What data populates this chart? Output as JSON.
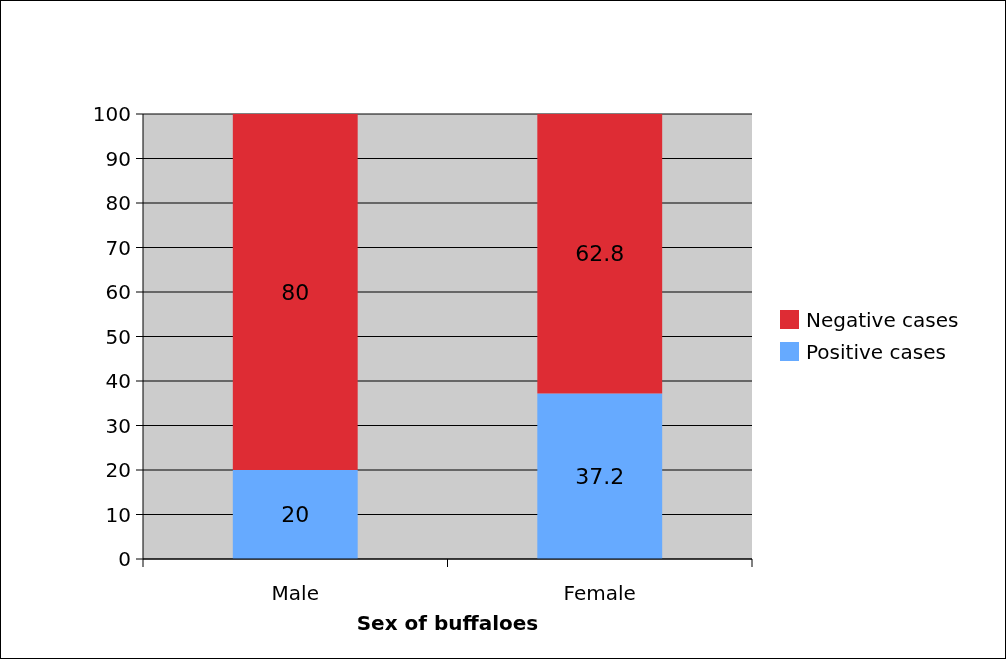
{
  "chart_data": {
    "type": "bar",
    "stacked": true,
    "xlabel": "Sex of buffaloes",
    "categories": [
      "Male",
      "Female"
    ],
    "series": [
      {
        "name": "Positive cases",
        "color": "#66aaff",
        "values": [
          20,
          37.2
        ]
      },
      {
        "name": "Negative cases",
        "color": "#de2c34",
        "values": [
          80,
          62.8
        ]
      }
    ],
    "ylim": [
      0,
      100
    ],
    "yticks": [
      0,
      10,
      20,
      30,
      40,
      50,
      60,
      70,
      80,
      90,
      100
    ],
    "grid": "y",
    "legend": "right",
    "data_labels": true
  }
}
